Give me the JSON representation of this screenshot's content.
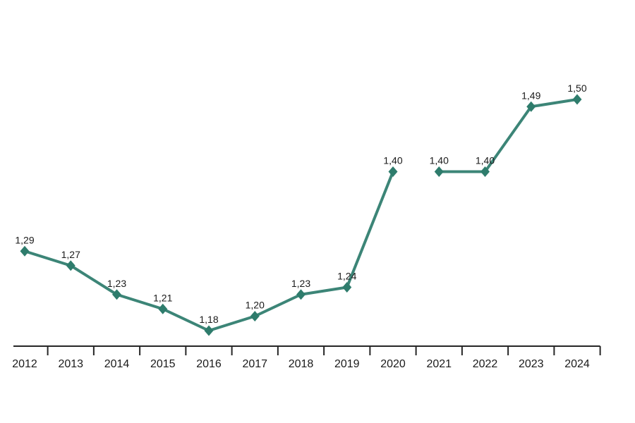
{
  "chart_data": {
    "type": "line",
    "categories": [
      "2012",
      "2013",
      "2014",
      "2015",
      "2016",
      "2017",
      "2018",
      "2019",
      "2020",
      "2021",
      "2022",
      "2023",
      "2024"
    ],
    "series": [
      {
        "name": "value-series",
        "values": [
          1.29,
          1.27,
          1.23,
          1.21,
          1.18,
          1.2,
          1.23,
          1.24,
          1.4,
          1.4,
          1.4,
          1.49,
          1.5
        ],
        "labels": [
          "1,29",
          "1,27",
          "1,23",
          "1,21",
          "1,18",
          "1,20",
          "1,23",
          "1,24",
          "1,40",
          "1,40",
          "1,40",
          "1,49",
          "1,50"
        ],
        "break_after_index": 8
      }
    ],
    "title": "",
    "xlabel": "",
    "ylabel": "",
    "ylim": [
      1.155,
      1.56
    ],
    "grid": false,
    "legend": "none",
    "decimal_separator": ",",
    "line_color": "#3c8577",
    "marker_color": "#2e7c6c",
    "marker_shape": "diamond",
    "axis_color": "#262626",
    "label_color": "#1a1a1a"
  }
}
